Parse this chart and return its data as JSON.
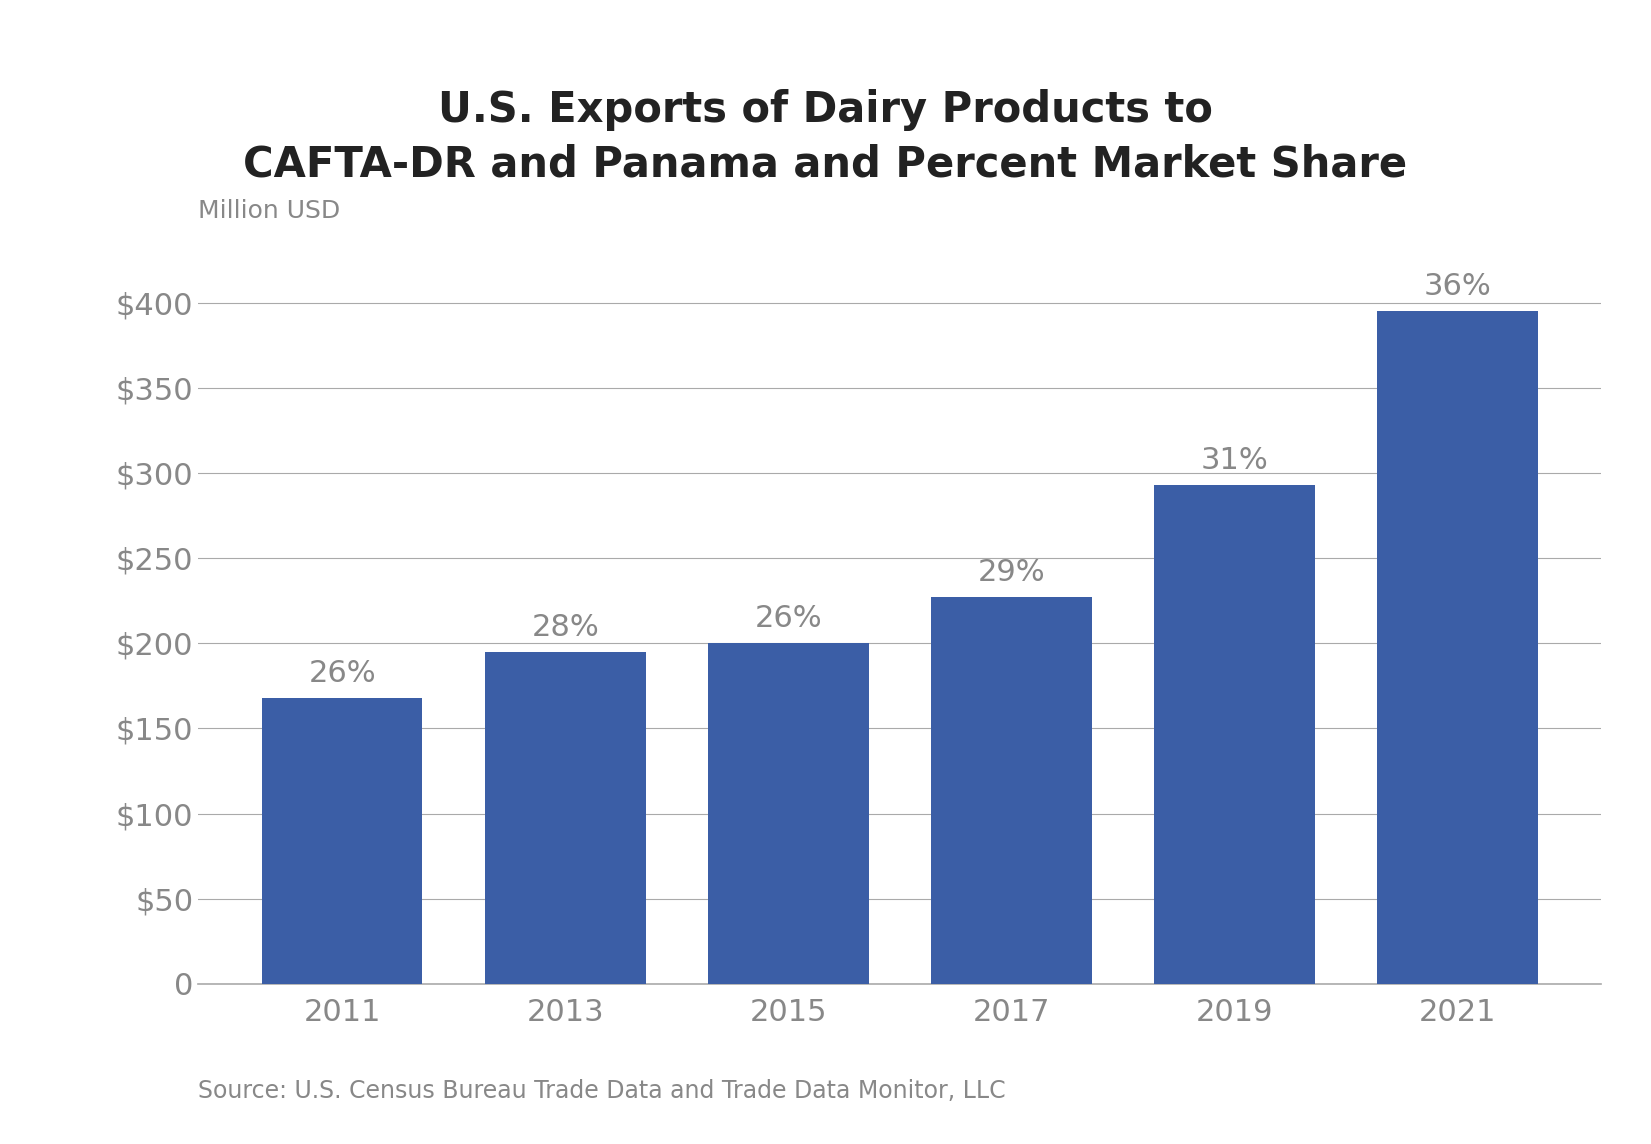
{
  "title": "U.S. Exports of Dairy Products to\nCAFTA-DR and Panama and Percent Market Share",
  "ylabel": "Million USD",
  "source": "Source: U.S. Census Bureau Trade Data and Trade Data Monitor, LLC",
  "categories": [
    "2011",
    "2013",
    "2015",
    "2017",
    "2019",
    "2021"
  ],
  "values": [
    168,
    195,
    200,
    227,
    293,
    395
  ],
  "percentages": [
    "26%",
    "28%",
    "26%",
    "29%",
    "31%",
    "36%"
  ],
  "bar_color": "#3B5EA6",
  "title_fontsize": 30,
  "ylabel_fontsize": 18,
  "tick_fontsize": 22,
  "source_fontsize": 17,
  "pct_fontsize": 22,
  "ylim": [
    0,
    430
  ],
  "yticks": [
    0,
    50,
    100,
    150,
    200,
    250,
    300,
    350,
    400
  ],
  "background_color": "#ffffff",
  "grid_color": "#aaaaaa",
  "tick_color": "#888888",
  "title_color": "#222222",
  "bar_width": 0.72
}
